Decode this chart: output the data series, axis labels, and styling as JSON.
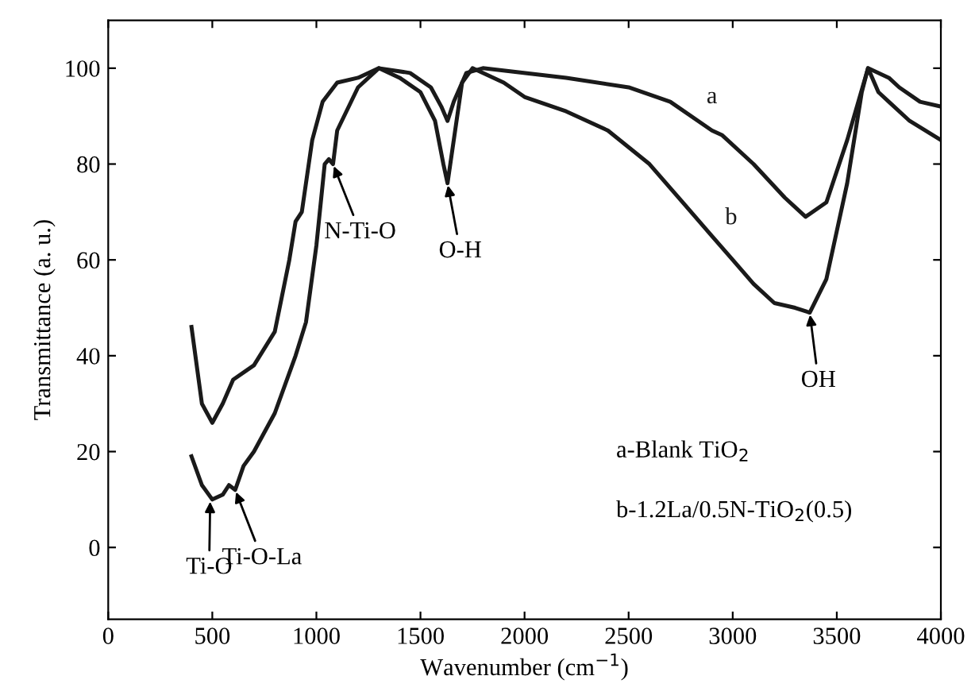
{
  "chart_data": {
    "type": "line",
    "xlabel": "Wavenumber (cm$^{−1}$)",
    "ylabel": "Transmittance (a. u.)",
    "xlim": [
      0,
      4000
    ],
    "ylim": [
      -15,
      110
    ],
    "xticks": [
      0,
      500,
      1000,
      1500,
      2000,
      2500,
      3000,
      3500,
      4000
    ],
    "yticks": [
      0,
      20,
      40,
      60,
      80,
      100
    ],
    "grid": false,
    "legend": false,
    "series": [
      {
        "name": "a",
        "color": "#1a1a1a",
        "x": [
          400,
          450,
          500,
          550,
          600,
          700,
          800,
          870,
          900,
          930,
          980,
          1030,
          1100,
          1200,
          1300,
          1450,
          1550,
          1600,
          1630,
          1660,
          1720,
          1800,
          2200,
          2500,
          2700,
          2900,
          2950,
          3100,
          3250,
          3350,
          3450,
          3550,
          3650,
          3750,
          3800,
          3900,
          4000
        ],
        "values": [
          46,
          30,
          26,
          30,
          35,
          38,
          45,
          60,
          68,
          70,
          85,
          93,
          97,
          98,
          100,
          99,
          96,
          92,
          89,
          93,
          99,
          100,
          98,
          96,
          93,
          87,
          86,
          80,
          73,
          69,
          72,
          85,
          100,
          98,
          96,
          93,
          92
        ]
      },
      {
        "name": "b",
        "color": "#1a1a1a",
        "x": [
          400,
          450,
          500,
          550,
          580,
          610,
          650,
          700,
          800,
          900,
          950,
          1000,
          1040,
          1060,
          1080,
          1100,
          1200,
          1300,
          1400,
          1500,
          1570,
          1610,
          1630,
          1650,
          1700,
          1750,
          1900,
          2000,
          2200,
          2400,
          2600,
          2800,
          2900,
          3000,
          3100,
          3200,
          3300,
          3370,
          3450,
          3550,
          3620,
          3650,
          3700,
          3750,
          3850,
          4000
        ],
        "values": [
          19,
          13,
          10,
          11,
          13,
          12,
          17,
          20,
          28,
          40,
          47,
          63,
          80,
          81,
          80,
          87,
          96,
          100,
          98,
          95,
          89,
          80,
          76,
          82,
          97,
          100,
          97,
          94,
          91,
          87,
          80,
          70,
          65,
          60,
          55,
          51,
          50,
          49,
          56,
          76,
          95,
          100,
          95,
          93,
          89,
          85
        ]
      }
    ],
    "annotations": [
      {
        "text": "Ti-O",
        "x": 490,
        "y": 10
      },
      {
        "text": "Ti-O-La",
        "x": 610,
        "y": 12
      },
      {
        "text": "N-Ti-O",
        "x": 1080,
        "y": 80
      },
      {
        "text": "O-H",
        "x": 1630,
        "y": 76
      },
      {
        "text": "OH",
        "x": 3370,
        "y": 49
      },
      "a-Blank TiO$_{2}$",
      "b-1.2La/0.5N-TiO$_{2}$(0.5)"
    ]
  }
}
